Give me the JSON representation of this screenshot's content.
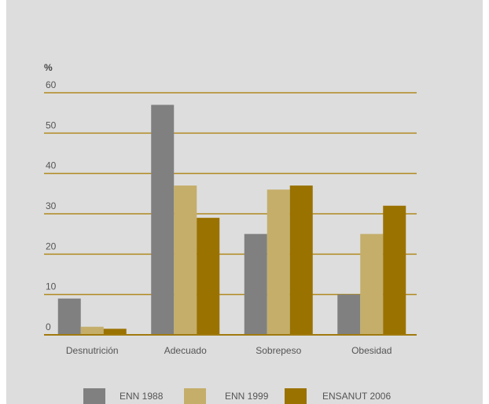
{
  "chart_data": {
    "type": "bar",
    "unit_label": "%",
    "categories": [
      "Desnutrición",
      "Adecuado",
      "Sobrepeso",
      "Obesidad"
    ],
    "series": [
      {
        "name": "ENN 1988",
        "color": "#808080",
        "values": [
          9,
          57,
          25,
          10
        ]
      },
      {
        "name": "ENN 1999",
        "color": "#c4ae6a",
        "values": [
          2,
          37,
          36,
          25
        ]
      },
      {
        "name": "ENSANUT 2006",
        "color": "#9a7200",
        "values": [
          1.5,
          29,
          37,
          32
        ]
      }
    ],
    "yticks": [
      0,
      10,
      20,
      30,
      40,
      50,
      60
    ],
    "ylim": [
      0,
      60
    ],
    "grid": true,
    "legend_position": "bottom"
  }
}
